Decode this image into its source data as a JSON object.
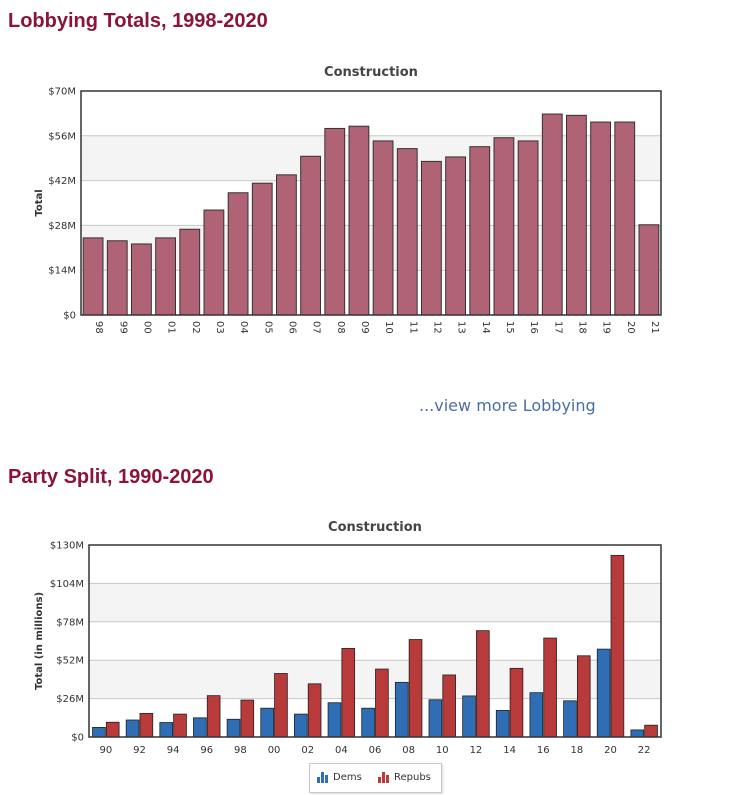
{
  "sections": {
    "lobbying_title": "Lobbying Totals, 1998-2020",
    "party_title": "Party Split, 1990-2020",
    "view_more": "...view more Lobbying"
  },
  "colors": {
    "title": "#8b1538",
    "lobby_bar": "#b06374",
    "dems": "#2f6db5",
    "repubs": "#b93a3a",
    "link": "#4a6fa5"
  },
  "chart_data": [
    {
      "type": "bar",
      "id": "lobbying",
      "title": "Construction",
      "xlabel": "",
      "ylabel": "Total",
      "ylim": [
        0,
        70
      ],
      "y_ticks": [
        0,
        14,
        28,
        42,
        56,
        70
      ],
      "y_tick_labels": [
        "$0",
        "$14M",
        "$28M",
        "$42M",
        "$56M",
        "$70M"
      ],
      "categories": [
        "98",
        "99",
        "00",
        "01",
        "02",
        "03",
        "04",
        "05",
        "06",
        "07",
        "08",
        "09",
        "10",
        "11",
        "12",
        "13",
        "14",
        "15",
        "16",
        "17",
        "18",
        "19",
        "20",
        "21"
      ],
      "values": [
        24.1,
        23.2,
        22.2,
        24.1,
        26.8,
        32.8,
        38.2,
        41.2,
        43.8,
        49.6,
        58.3,
        59.0,
        54.4,
        52.0,
        48.0,
        49.4,
        52.6,
        55.4,
        54.4,
        62.8,
        62.4,
        60.3,
        60.3,
        28.2
      ],
      "grid": true
    },
    {
      "type": "bar",
      "id": "party-split",
      "title": "Construction",
      "xlabel": "",
      "ylabel": "Total (in millions)",
      "ylim": [
        0,
        130
      ],
      "y_ticks": [
        0,
        26,
        52,
        78,
        104,
        130
      ],
      "y_tick_labels": [
        "$0",
        "$26M",
        "$52M",
        "$78M",
        "$104M",
        "$130M"
      ],
      "categories": [
        "90",
        "92",
        "94",
        "96",
        "98",
        "00",
        "02",
        "04",
        "06",
        "08",
        "10",
        "12",
        "14",
        "16",
        "18",
        "20",
        "22"
      ],
      "series": [
        {
          "name": "Dems",
          "values": [
            6.5,
            11.5,
            9.8,
            13.0,
            12.0,
            19.5,
            15.5,
            23.2,
            19.5,
            37.0,
            25.2,
            27.8,
            18.0,
            30.0,
            24.5,
            59.5,
            4.8
          ]
        },
        {
          "name": "Repubs",
          "values": [
            10.0,
            16.0,
            15.5,
            28.0,
            25.0,
            43.0,
            36.0,
            60.0,
            46.0,
            66.0,
            42.0,
            72.0,
            46.5,
            67.0,
            55.0,
            123.0,
            8.0
          ]
        }
      ],
      "legend": "bottom-center",
      "grid": true
    }
  ]
}
